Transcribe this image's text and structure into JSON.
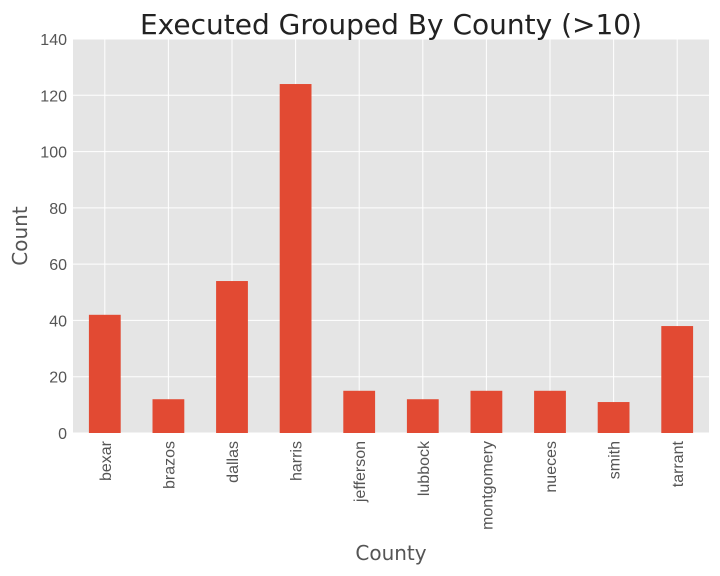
{
  "chart_data": {
    "type": "bar",
    "title": "Executed Grouped By County (>10)",
    "xlabel": "County",
    "ylabel": "Count",
    "categories": [
      "bexar",
      "brazos",
      "dallas",
      "harris",
      "jefferson",
      "lubbock",
      "montgomery",
      "nueces",
      "smith",
      "tarrant"
    ],
    "values": [
      42,
      12,
      54,
      124,
      15,
      12,
      15,
      15,
      11,
      38
    ],
    "ylim": [
      0,
      140
    ],
    "yticks": [
      0,
      20,
      40,
      60,
      80,
      100,
      120,
      140
    ],
    "grid": true,
    "legend": "none",
    "colors": {
      "bar": "#E24A33",
      "background": "#E5E5E5",
      "grid": "#FFFFFF"
    }
  }
}
